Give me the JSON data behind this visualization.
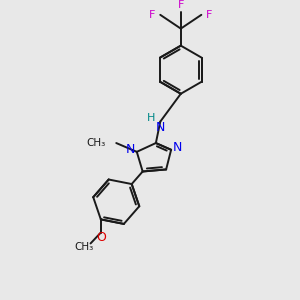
{
  "bg_color": "#e8e8e8",
  "bond_color": "#1a1a1a",
  "N_color": "#0000ee",
  "O_color": "#dd0000",
  "F_color": "#cc00cc",
  "H_color": "#008888",
  "figsize": [
    3.0,
    3.0
  ],
  "dpi": 100,
  "xlim": [
    0,
    10
  ],
  "ylim": [
    0,
    10
  ]
}
